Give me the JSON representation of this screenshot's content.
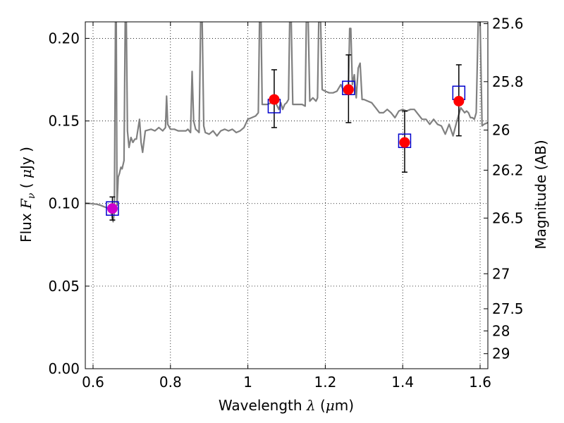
{
  "chart_data": {
    "type": "scatter",
    "xlabel_prefix": "Wavelength ",
    "xlabel_symbol": "λ",
    "xlabel_unit_open": " (",
    "xlabel_unit_mu": "μ",
    "xlabel_unit_rest": "m)",
    "ylabel_prefix": "Flux ",
    "ylabel_symbol": "F",
    "ylabel_sub": "ν",
    "ylabel_unit_open": " ( ",
    "ylabel_unit_mu": "μ",
    "ylabel_unit_rest": "Jy )",
    "y2label": "Magnitude (AB)",
    "xlim": [
      0.58,
      1.62
    ],
    "ylim": [
      0.0,
      0.21
    ],
    "grid": true,
    "x_ticks": [
      0.6,
      0.8,
      1.0,
      1.2,
      1.4,
      1.6
    ],
    "x_tick_labels": [
      "0.6",
      "0.8",
      "1",
      "1.2",
      "1.4",
      "1.6"
    ],
    "y_ticks": [
      0.0,
      0.05,
      0.1,
      0.15,
      0.2
    ],
    "y_tick_labels": [
      "0.00",
      "0.05",
      "0.10",
      "0.15",
      "0.20"
    ],
    "y2_ticks": [
      {
        "label": "25.6",
        "flux": 0.2089
      },
      {
        "label": "25.8",
        "flux": 0.1738
      },
      {
        "label": "26",
        "flux": 0.1445
      },
      {
        "label": "26.2",
        "flux": 0.1202
      },
      {
        "label": "26.5",
        "flux": 0.0912
      },
      {
        "label": "27",
        "flux": 0.0575
      },
      {
        "label": "27.5",
        "flux": 0.0363
      },
      {
        "label": "28",
        "flux": 0.0229
      },
      {
        "label": "29",
        "flux": 0.0091
      }
    ],
    "model_spectrum": {
      "name": "",
      "color": "#808080",
      "points": [
        [
          0.58,
          0.1002
        ],
        [
          0.59,
          0.1001
        ],
        [
          0.6,
          0.0998
        ],
        [
          0.61,
          0.0996
        ],
        [
          0.62,
          0.0989
        ],
        [
          0.63,
          0.0979
        ],
        [
          0.64,
          0.0971
        ],
        [
          0.645,
          0.0965
        ],
        [
          0.652,
          0.089
        ],
        [
          0.655,
          0.095
        ],
        [
          0.658,
          0.21
        ],
        [
          0.66,
          0.21
        ],
        [
          0.662,
          0.099
        ],
        [
          0.665,
          0.116
        ],
        [
          0.668,
          0.118
        ],
        [
          0.67,
          0.12
        ],
        [
          0.672,
          0.122
        ],
        [
          0.675,
          0.121
        ],
        [
          0.68,
          0.126
        ],
        [
          0.683,
          0.21
        ],
        [
          0.686,
          0.21
        ],
        [
          0.689,
          0.144
        ],
        [
          0.693,
          0.134
        ],
        [
          0.698,
          0.14
        ],
        [
          0.703,
          0.137
        ],
        [
          0.708,
          0.139
        ],
        [
          0.712,
          0.139
        ],
        [
          0.716,
          0.145
        ],
        [
          0.72,
          0.151
        ],
        [
          0.724,
          0.137
        ],
        [
          0.728,
          0.131
        ],
        [
          0.735,
          0.144
        ],
        [
          0.75,
          0.145
        ],
        [
          0.76,
          0.144
        ],
        [
          0.77,
          0.146
        ],
        [
          0.78,
          0.144
        ],
        [
          0.787,
          0.146
        ],
        [
          0.79,
          0.165
        ],
        [
          0.793,
          0.148
        ],
        [
          0.8,
          0.145
        ],
        [
          0.81,
          0.145
        ],
        [
          0.82,
          0.144
        ],
        [
          0.83,
          0.144
        ],
        [
          0.84,
          0.144
        ],
        [
          0.845,
          0.145
        ],
        [
          0.852,
          0.143
        ],
        [
          0.856,
          0.18
        ],
        [
          0.86,
          0.15
        ],
        [
          0.865,
          0.145
        ],
        [
          0.87,
          0.144
        ],
        [
          0.874,
          0.143
        ],
        [
          0.878,
          0.21
        ],
        [
          0.882,
          0.21
        ],
        [
          0.886,
          0.147
        ],
        [
          0.89,
          0.143
        ],
        [
          0.9,
          0.142
        ],
        [
          0.91,
          0.144
        ],
        [
          0.92,
          0.141
        ],
        [
          0.93,
          0.144
        ],
        [
          0.94,
          0.145
        ],
        [
          0.95,
          0.144
        ],
        [
          0.96,
          0.145
        ],
        [
          0.97,
          0.143
        ],
        [
          0.98,
          0.144
        ],
        [
          0.99,
          0.146
        ],
        [
          1.0,
          0.151
        ],
        [
          1.01,
          0.152
        ],
        [
          1.02,
          0.153
        ],
        [
          1.027,
          0.155
        ],
        [
          1.03,
          0.21
        ],
        [
          1.034,
          0.21
        ],
        [
          1.037,
          0.16
        ],
        [
          1.05,
          0.16
        ],
        [
          1.06,
          0.161
        ],
        [
          1.07,
          0.162
        ],
        [
          1.08,
          0.157
        ],
        [
          1.085,
          0.161
        ],
        [
          1.09,
          0.157
        ],
        [
          1.095,
          0.16
        ],
        [
          1.1,
          0.161
        ],
        [
          1.105,
          0.163
        ],
        [
          1.108,
          0.21
        ],
        [
          1.112,
          0.21
        ],
        [
          1.116,
          0.16
        ],
        [
          1.125,
          0.16
        ],
        [
          1.14,
          0.16
        ],
        [
          1.148,
          0.159
        ],
        [
          1.151,
          0.21
        ],
        [
          1.156,
          0.21
        ],
        [
          1.16,
          0.162
        ],
        [
          1.168,
          0.164
        ],
        [
          1.176,
          0.162
        ],
        [
          1.18,
          0.164
        ],
        [
          1.183,
          0.21
        ],
        [
          1.188,
          0.21
        ],
        [
          1.192,
          0.169
        ],
        [
          1.2,
          0.168
        ],
        [
          1.21,
          0.167
        ],
        [
          1.22,
          0.167
        ],
        [
          1.23,
          0.168
        ],
        [
          1.24,
          0.172
        ],
        [
          1.25,
          0.167
        ],
        [
          1.255,
          0.168
        ],
        [
          1.26,
          0.172
        ],
        [
          1.263,
          0.206
        ],
        [
          1.266,
          0.206
        ],
        [
          1.27,
          0.172
        ],
        [
          1.275,
          0.178
        ],
        [
          1.28,
          0.164
        ],
        [
          1.285,
          0.182
        ],
        [
          1.29,
          0.185
        ],
        [
          1.295,
          0.163
        ],
        [
          1.3,
          0.163
        ],
        [
          1.31,
          0.162
        ],
        [
          1.32,
          0.161
        ],
        [
          1.33,
          0.158
        ],
        [
          1.34,
          0.155
        ],
        [
          1.35,
          0.155
        ],
        [
          1.36,
          0.157
        ],
        [
          1.37,
          0.155
        ],
        [
          1.38,
          0.152
        ],
        [
          1.39,
          0.156
        ],
        [
          1.4,
          0.157
        ],
        [
          1.41,
          0.156
        ],
        [
          1.42,
          0.157
        ],
        [
          1.43,
          0.157
        ],
        [
          1.44,
          0.154
        ],
        [
          1.45,
          0.151
        ],
        [
          1.46,
          0.151
        ],
        [
          1.47,
          0.148
        ],
        [
          1.48,
          0.151
        ],
        [
          1.49,
          0.148
        ],
        [
          1.5,
          0.147
        ],
        [
          1.51,
          0.142
        ],
        [
          1.52,
          0.148
        ],
        [
          1.53,
          0.141
        ],
        [
          1.54,
          0.15
        ],
        [
          1.55,
          0.158
        ],
        [
          1.56,
          0.155
        ],
        [
          1.565,
          0.156
        ],
        [
          1.57,
          0.155
        ],
        [
          1.575,
          0.152
        ],
        [
          1.58,
          0.152
        ],
        [
          1.585,
          0.151
        ],
        [
          1.59,
          0.155
        ],
        [
          1.595,
          0.21
        ],
        [
          1.6,
          0.21
        ],
        [
          1.605,
          0.147
        ],
        [
          1.61,
          0.148
        ],
        [
          1.62,
          0.149
        ]
      ]
    },
    "model_bandpass_points": {
      "name": "",
      "color": "#0000cc",
      "points": [
        [
          0.65,
          0.097
        ],
        [
          1.068,
          0.159
        ],
        [
          1.26,
          0.17
        ],
        [
          1.405,
          0.138
        ],
        [
          1.545,
          0.167
        ]
      ]
    },
    "observed_points": {
      "name": "",
      "color_detected": "#ff0000",
      "color_first": "#cc00cc",
      "points": [
        {
          "x": 0.65,
          "y": 0.097,
          "yerr_low": 0.09,
          "yerr_high": 0.104
        },
        {
          "x": 1.068,
          "y": 0.163,
          "yerr_low": 0.146,
          "yerr_high": 0.181
        },
        {
          "x": 1.26,
          "y": 0.169,
          "yerr_low": 0.149,
          "yerr_high": 0.19
        },
        {
          "x": 1.405,
          "y": 0.137,
          "yerr_low": 0.119,
          "yerr_high": 0.156
        },
        {
          "x": 1.545,
          "y": 0.162,
          "yerr_low": 0.141,
          "yerr_high": 0.184
        }
      ]
    }
  }
}
